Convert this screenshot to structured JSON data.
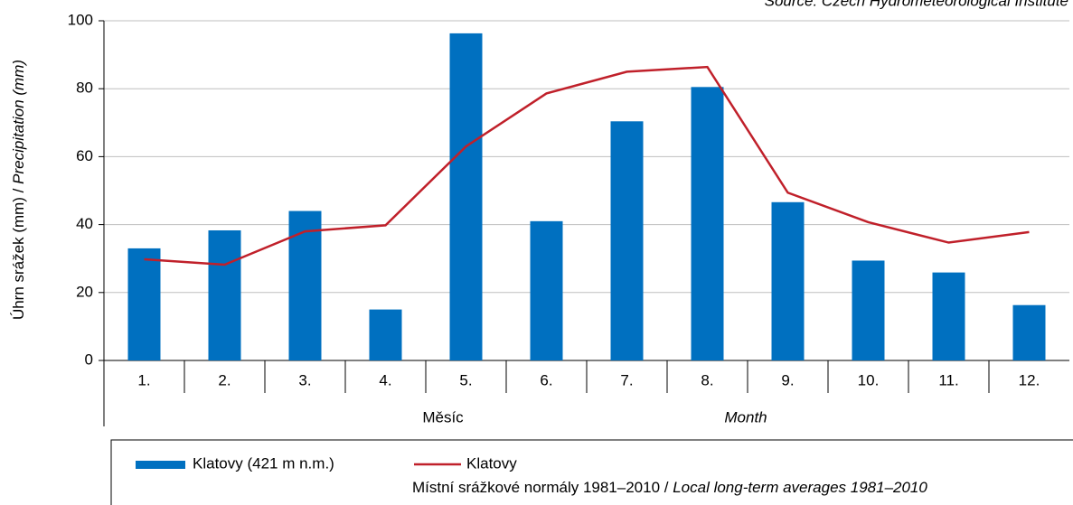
{
  "chart_data": {
    "type": "bar",
    "source": "Source: Czech Hydrometeorological Institute",
    "y_label": "Úhrn srážek (mm) / ",
    "y_label_en": "Precipitation (mm)",
    "x_label": "Měsíc",
    "x_label_en": "Month",
    "note": "Místní srážkové normály 1981–2010 / ",
    "note_en": "Local long-term averages 1981–2010",
    "categories": [
      "1.",
      "2.",
      "3.",
      "4.",
      "5.",
      "6.",
      "7.",
      "8.",
      "9.",
      "10.",
      "11.",
      "12."
    ],
    "series": [
      {
        "name": "Klatovy (421 m n.m.)",
        "type": "bar",
        "color": "#0070c0",
        "values": [
          33,
          38.3,
          44,
          15,
          96.3,
          41,
          70.4,
          80.5,
          46.6,
          29.4,
          25.9,
          16.3
        ]
      },
      {
        "name": "Klatovy",
        "type": "line",
        "color": "#c0202a",
        "values": [
          29.8,
          28.2,
          38,
          39.8,
          63,
          78.6,
          85,
          86.4,
          49.4,
          40.7,
          34.7,
          37.8
        ]
      }
    ],
    "ylim": [
      0,
      100
    ],
    "yticks": [
      0,
      20,
      40,
      60,
      80,
      100
    ],
    "grid": true
  }
}
